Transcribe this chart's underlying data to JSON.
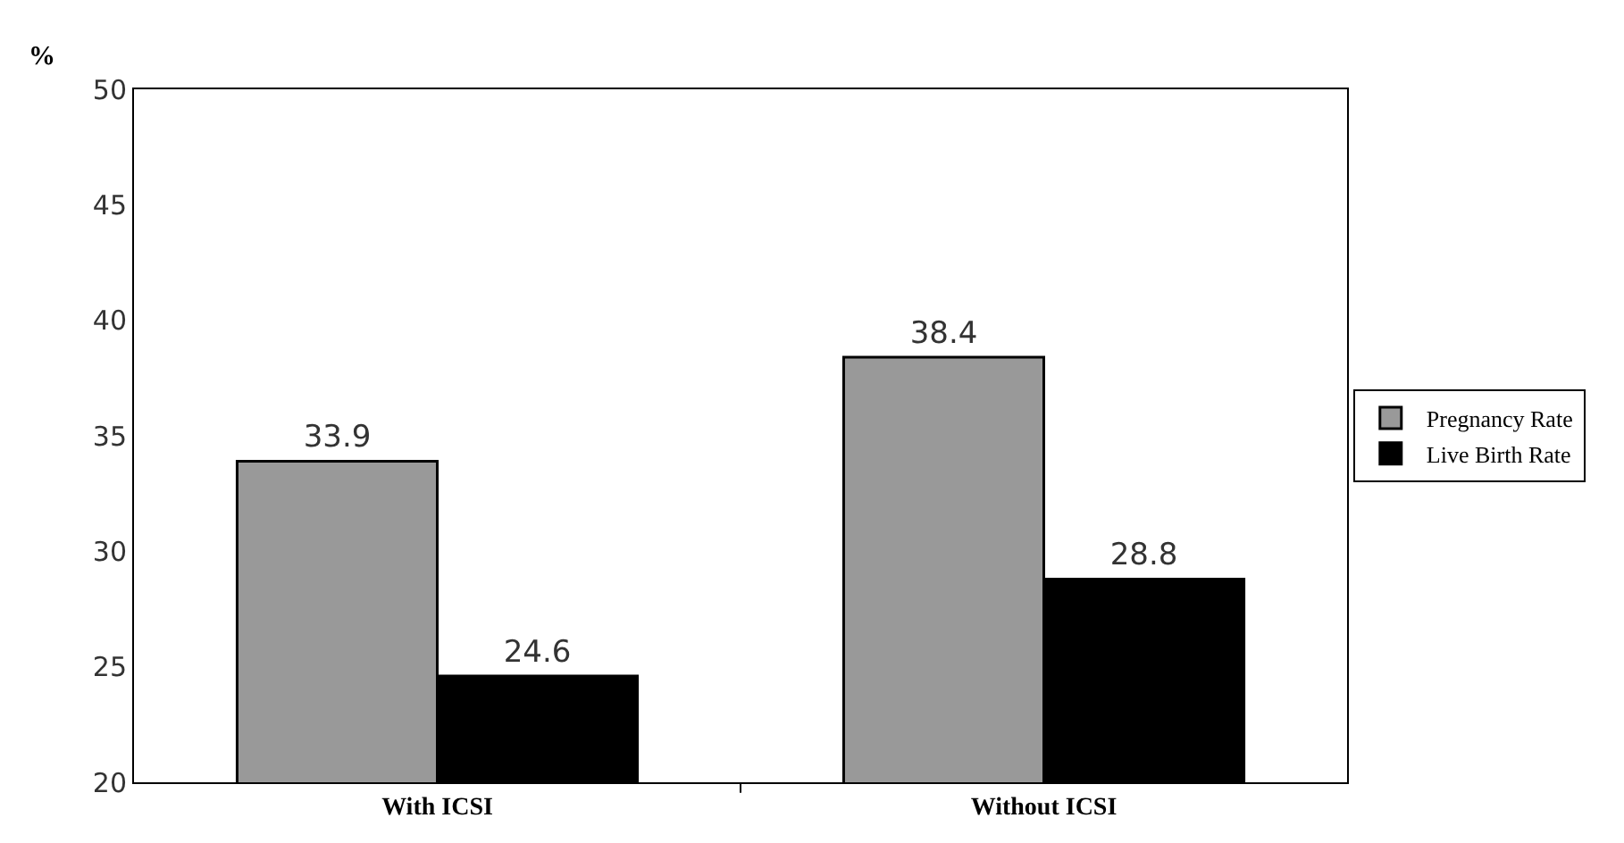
{
  "chart_data": {
    "type": "bar",
    "ylabel": "%",
    "categories": [
      "With ICSI",
      "Without ICSI"
    ],
    "series": [
      {
        "name": "Pregnancy Rate",
        "color": "#999999",
        "values": [
          33.9,
          38.4
        ]
      },
      {
        "name": "Live Birth Rate",
        "color": "#000000",
        "values": [
          24.6,
          28.8
        ]
      }
    ],
    "ylim": [
      20,
      50
    ],
    "yticks": [
      20,
      25,
      30,
      35,
      40,
      45,
      50
    ],
    "data_labels": true,
    "legend": "right",
    "grid": false
  }
}
